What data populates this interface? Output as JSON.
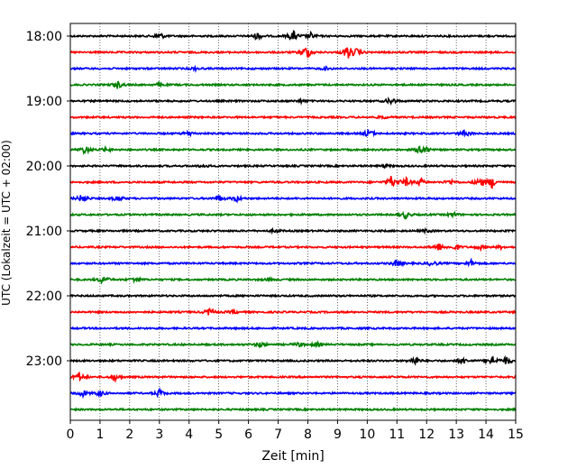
{
  "chart_data": {
    "type": "line",
    "title": "",
    "xlabel": "Zeit  [min]",
    "ylabel": "UTC (Lokalzeit = UTC + 02:00)",
    "xlim": [
      0,
      15
    ],
    "x_ticks": [
      0,
      1,
      2,
      3,
      4,
      5,
      6,
      7,
      8,
      9,
      10,
      11,
      12,
      13,
      14,
      15
    ],
    "x_tick_labels": [
      "0",
      "1",
      "2",
      "3",
      "4",
      "5",
      "6",
      "7",
      "8",
      "9",
      "10",
      "11",
      "12",
      "13",
      "14",
      "15"
    ],
    "y_tick_labels": [
      "18:00",
      "19:00",
      "20:00",
      "21:00",
      "22:00",
      "23:00"
    ],
    "grid": "x-dotted",
    "trace_interval_min": 15,
    "colors": [
      "#000000",
      "#ff0000",
      "#0000ff",
      "#008000"
    ],
    "traces": [
      {
        "start": "18:00",
        "color": "#000000",
        "events": [
          [
            3.0,
            0.5
          ],
          [
            6.3,
            0.5
          ],
          [
            7.5,
            0.8
          ],
          [
            8.1,
            0.4
          ]
        ]
      },
      {
        "start": "18:15",
        "color": "#ff0000",
        "events": [
          [
            7.95,
            1.0
          ],
          [
            9.35,
            1.0
          ],
          [
            9.65,
            0.4
          ]
        ]
      },
      {
        "start": "18:30",
        "color": "#0000ff",
        "events": [
          [
            4.2,
            0.2
          ],
          [
            8.6,
            0.2
          ]
        ]
      },
      {
        "start": "18:45",
        "color": "#008000",
        "events": [
          [
            1.6,
            0.5
          ],
          [
            3.0,
            0.2
          ]
        ]
      },
      {
        "start": "19:00",
        "color": "#000000",
        "events": [
          [
            7.8,
            0.2
          ],
          [
            10.8,
            0.5
          ]
        ]
      },
      {
        "start": "19:15",
        "color": "#ff0000",
        "events": [
          [
            10.5,
            0.2
          ]
        ]
      },
      {
        "start": "19:30",
        "color": "#0000ff",
        "events": [
          [
            4.0,
            0.3
          ],
          [
            10.05,
            0.6
          ],
          [
            13.3,
            0.5
          ]
        ]
      },
      {
        "start": "19:45",
        "color": "#008000",
        "events": [
          [
            0.5,
            0.6
          ],
          [
            1.2,
            0.3
          ],
          [
            11.85,
            1.0
          ]
        ]
      },
      {
        "start": "20:00",
        "color": "#000000",
        "events": [
          [
            4.5,
            0.2
          ],
          [
            10.6,
            0.2
          ]
        ]
      },
      {
        "start": "20:15",
        "color": "#ff0000",
        "events": [
          [
            10.8,
            0.9
          ],
          [
            11.3,
            0.6
          ],
          [
            11.8,
            0.5
          ],
          [
            12.8,
            0.4
          ],
          [
            13.8,
            0.7
          ],
          [
            14.2,
            0.8
          ]
        ]
      },
      {
        "start": "20:30",
        "color": "#0000ff",
        "events": [
          [
            0.4,
            0.6
          ],
          [
            1.6,
            0.4
          ],
          [
            5.0,
            0.5
          ],
          [
            5.6,
            0.4
          ]
        ]
      },
      {
        "start": "20:45",
        "color": "#008000",
        "events": [
          [
            11.3,
            0.5
          ],
          [
            12.9,
            0.3
          ]
        ]
      },
      {
        "start": "21:00",
        "color": "#000000",
        "events": [
          [
            6.9,
            0.2
          ],
          [
            12.0,
            0.2
          ]
        ]
      },
      {
        "start": "21:15",
        "color": "#ff0000",
        "events": [
          [
            12.4,
            0.6
          ],
          [
            13.0,
            0.4
          ],
          [
            13.8,
            0.3
          ],
          [
            14.5,
            0.2
          ]
        ]
      },
      {
        "start": "21:30",
        "color": "#0000ff",
        "events": [
          [
            11.0,
            0.5
          ],
          [
            12.2,
            0.4
          ],
          [
            13.5,
            0.4
          ]
        ]
      },
      {
        "start": "21:45",
        "color": "#008000",
        "events": [
          [
            1.1,
            0.6
          ],
          [
            2.2,
            0.4
          ],
          [
            6.7,
            0.2
          ]
        ]
      },
      {
        "start": "22:00",
        "color": "#000000",
        "events": []
      },
      {
        "start": "22:15",
        "color": "#ff0000",
        "events": [
          [
            4.7,
            0.6
          ],
          [
            5.5,
            0.2
          ]
        ]
      },
      {
        "start": "22:30",
        "color": "#0000ff",
        "events": []
      },
      {
        "start": "22:45",
        "color": "#008000",
        "events": [
          [
            6.4,
            0.4
          ],
          [
            7.7,
            0.3
          ],
          [
            8.3,
            0.3
          ]
        ]
      },
      {
        "start": "23:00",
        "color": "#000000",
        "events": [
          [
            11.6,
            0.6
          ],
          [
            13.2,
            0.5
          ],
          [
            14.2,
            0.7
          ],
          [
            14.7,
            0.6
          ]
        ]
      },
      {
        "start": "23:15",
        "color": "#ff0000",
        "events": [
          [
            0.3,
            0.6
          ],
          [
            1.5,
            0.5
          ]
        ]
      },
      {
        "start": "23:30",
        "color": "#0000ff",
        "events": [
          [
            0.4,
            0.5
          ],
          [
            1.0,
            0.4
          ],
          [
            3.0,
            0.5
          ]
        ]
      },
      {
        "start": "23:45",
        "color": "#008000",
        "events": []
      }
    ]
  }
}
